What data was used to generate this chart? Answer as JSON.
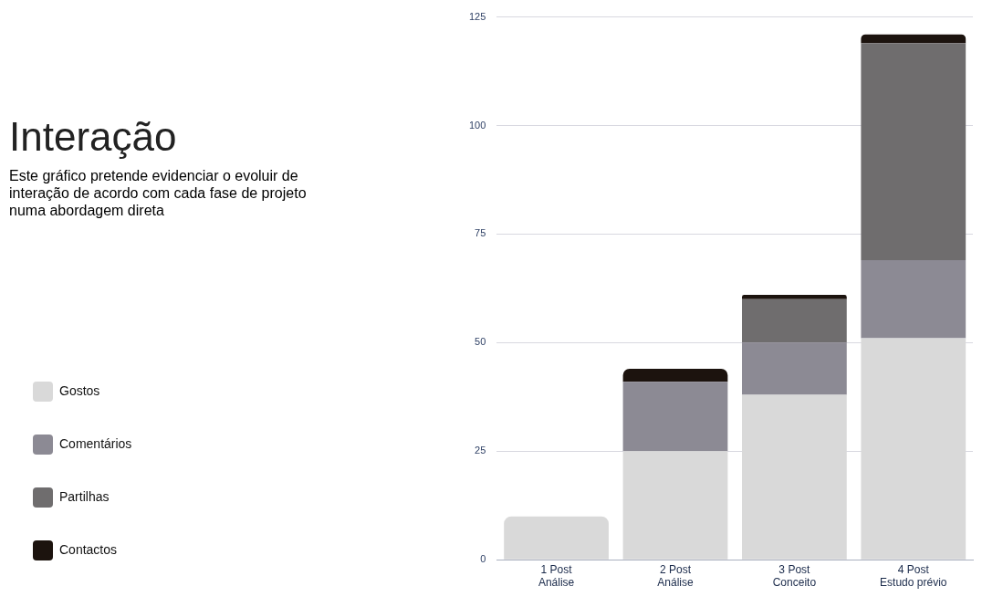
{
  "chart_data": {
    "type": "bar",
    "title": "Interação",
    "subtitle": "Este gráfico pretende evidenciar o evoluir de interação de acordo com cada fase de projeto numa abordagem direta",
    "categories": [
      "1 Post\nAnálise",
      "2 Post\nAnálise",
      "3 Post\nConceito",
      "4 Post\nEstudo prévio"
    ],
    "series": [
      {
        "name": "Gostos",
        "color": "#d9d9d9",
        "values": [
          10,
          25,
          38,
          51
        ]
      },
      {
        "name": "Comentários",
        "color": "#8c8a94",
        "values": [
          0,
          16,
          12,
          18
        ]
      },
      {
        "name": "Partilhas",
        "color": "#6f6d6e",
        "values": [
          0,
          0,
          10,
          50
        ]
      },
      {
        "name": "Contactos",
        "color": "#1c130e",
        "values": [
          0,
          3,
          1,
          2
        ]
      }
    ],
    "stacked": true,
    "ylim": [
      0,
      125
    ],
    "yticks": [
      0,
      25,
      50,
      75,
      100,
      125
    ],
    "grid": "y",
    "legend": "left"
  }
}
